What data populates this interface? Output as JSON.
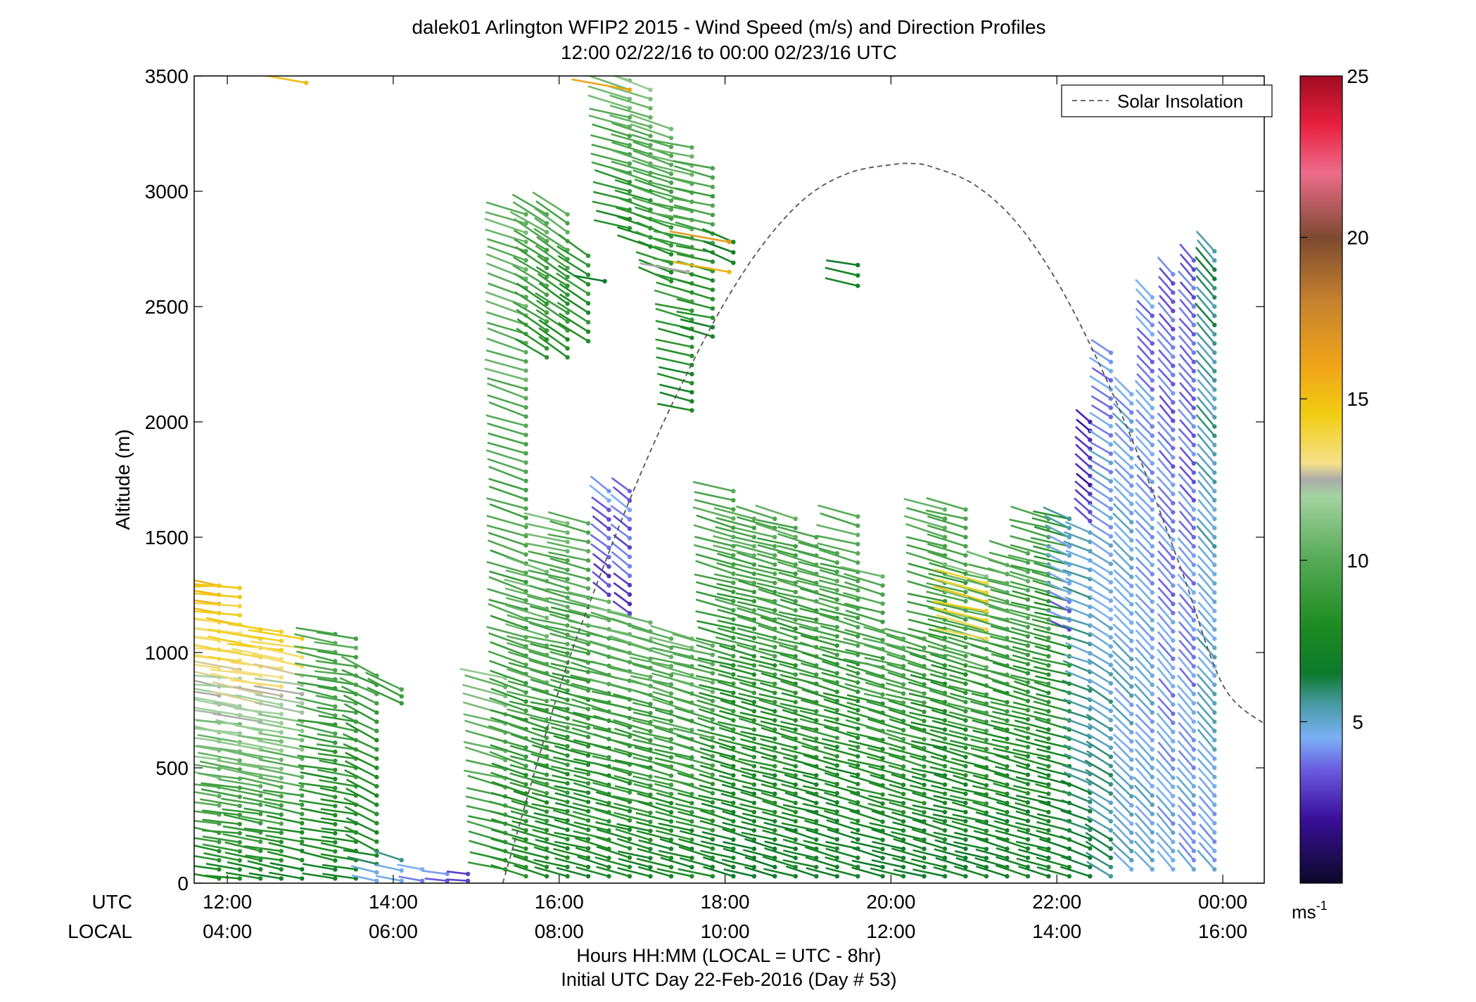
{
  "chart_data": {
    "type": "scatter",
    "title": "dalek01 Arlington WFIP2 2015 - Wind Speed (m/s) and Direction Profiles",
    "subtitle": "12:00 02/22/16 to 00:00 02/23/16  UTC",
    "ylabel": "Altitude (m)",
    "ylim": [
      0,
      3500
    ],
    "yticks": [
      "0",
      "500",
      "1000",
      "1500",
      "2000",
      "2500",
      "3000",
      "3500"
    ],
    "xlim_hours_utc": [
      11.6,
      24.5
    ],
    "xrow_utc_label": "UTC",
    "xrow_local_label": "LOCAL",
    "xticks_utc": [
      "12:00",
      "14:00",
      "16:00",
      "18:00",
      "20:00",
      "22:00",
      "00:00"
    ],
    "xticks_local": [
      "04:00",
      "06:00",
      "08:00",
      "10:00",
      "12:00",
      "14:00",
      "16:00"
    ],
    "xlabel": "Hours HH:MM  (LOCAL = UTC - 8hr)",
    "xlabel2": "Initial UTC Day 22-Feb-2016 (Day # 53)",
    "legend": {
      "label": "Solar Insolation",
      "placement": "top-right",
      "style": "dashed",
      "color": "#555555"
    },
    "solar_insolation_curve": {
      "x_hours_utc": [
        15.32,
        16.0,
        16.5,
        17.0,
        17.5,
        18.0,
        18.5,
        19.0,
        19.5,
        20.0,
        20.27,
        20.5,
        21.0,
        21.5,
        22.0,
        22.5,
        23.0,
        23.5,
        24.0,
        24.5
      ],
      "y_altitude_m": [
        0,
        840,
        1340,
        1790,
        2180,
        2520,
        2790,
        2980,
        3080,
        3115,
        3120,
        3105,
        3030,
        2870,
        2610,
        2260,
        1840,
        1360,
        860,
        690
      ]
    },
    "colorbar": {
      "min": 0,
      "max": 25,
      "ticks": [
        "5",
        "10",
        "15",
        "20",
        "25"
      ],
      "unit_label": "ms",
      "unit_exponent": "-1",
      "stops": [
        [
          0,
          "#0b0a28"
        ],
        [
          2,
          "#3a0f9a"
        ],
        [
          3.5,
          "#6a5ae0"
        ],
        [
          4.5,
          "#7ab0f5"
        ],
        [
          5.5,
          "#4a9ba8"
        ],
        [
          6.5,
          "#0d7a2c"
        ],
        [
          8,
          "#1e8c22"
        ],
        [
          10,
          "#55aa55"
        ],
        [
          12,
          "#a3d3a0"
        ],
        [
          12.5,
          "#aaaaaa"
        ],
        [
          13,
          "#f5e08a"
        ],
        [
          14.5,
          "#f1cd12"
        ],
        [
          16,
          "#f0a418"
        ],
        [
          18,
          "#c7822d"
        ],
        [
          20,
          "#7d4a30"
        ],
        [
          22,
          "#ee6b8b"
        ],
        [
          23.5,
          "#e8203e"
        ],
        [
          25,
          "#a00c22"
        ]
      ]
    },
    "profiles": [
      {
        "t": 11.9,
        "segments": [
          [
            20,
            1290,
            8.0,
            15.5,
            1.5,
            -0.08
          ],
          [
            1290,
            1290,
            15.0,
            15.0,
            0,
            0
          ]
        ]
      },
      {
        "t": 12.15,
        "segments": [
          [
            20,
            1280,
            7.5,
            14.8,
            1.4,
            -0.1
          ]
        ]
      },
      {
        "t": 12.4,
        "segments": [
          [
            20,
            1100,
            7.8,
            14.5,
            1.4,
            -0.05
          ]
        ]
      },
      {
        "t": 12.65,
        "segments": [
          [
            20,
            1090,
            7.5,
            14.5,
            1.4,
            -0.05
          ]
        ]
      },
      {
        "t": 12.9,
        "segments": [
          [
            20,
            1060,
            7.0,
            14.0,
            1.4,
            -0.05
          ]
        ]
      },
      {
        "t": 13.3,
        "segments": [
          [
            20,
            1080,
            7.5,
            10.0,
            1.3,
            -0.02
          ]
        ]
      },
      {
        "t": 13.55,
        "segments": [
          [
            20,
            1060,
            7.8,
            10.0,
            1.3,
            -0.05
          ]
        ]
      },
      {
        "t": 13.8,
        "segments": [
          [
            10,
            120,
            4.5,
            7.0,
            0.5,
            0.15
          ],
          [
            140,
            900,
            7.5,
            9.5,
            1.1,
            0.35
          ]
        ]
      },
      {
        "t": 14.1,
        "segments": [
          [
            10,
            100,
            4.5,
            6.0,
            0.5,
            0.2
          ],
          [
            780,
            840,
            9.5,
            9.5,
            1.0,
            0.4
          ]
        ]
      },
      {
        "t": 14.35,
        "segments": [
          [
            10,
            60,
            4.2,
            5.0,
            0.6,
            0.1
          ]
        ]
      },
      {
        "t": 14.65,
        "segments": [
          [
            10,
            40,
            4.0,
            4.0,
            0.6,
            0.0
          ]
        ]
      },
      {
        "t": 14.9,
        "segments": [
          [
            10,
            40,
            2.5,
            2.5,
            0.6,
            0.0
          ]
        ]
      },
      {
        "t": 15.35,
        "segments": [
          [
            60,
            890,
            8.5,
            11.0,
            1.0,
            0.1
          ]
        ]
      },
      {
        "t": 15.6,
        "segments": [
          [
            30,
            2900,
            8.5,
            10.5,
            1.2,
            0.15
          ]
        ]
      },
      {
        "t": 15.85,
        "segments": [
          [
            30,
            1350,
            7.5,
            11.0,
            1.3,
            0.1
          ],
          [
            2280,
            2900,
            8.5,
            10.0,
            1.1,
            0.5
          ]
        ]
      },
      {
        "t": 16.1,
        "segments": [
          [
            30,
            1560,
            7.5,
            10.5,
            1.3,
            0.05
          ],
          [
            2280,
            2900,
            8.0,
            10.0,
            1.1,
            0.55
          ]
        ]
      },
      {
        "t": 16.35,
        "segments": [
          [
            30,
            1560,
            7.5,
            10.0,
            1.3,
            0.05
          ],
          [
            2350,
            2720,
            8.0,
            9.0,
            1.1,
            0.55
          ]
        ]
      },
      {
        "t": 16.6,
        "segments": [
          [
            30,
            1220,
            7.5,
            10.0,
            1.4,
            0.05
          ],
          [
            1250,
            1700,
            3.0,
            4.0,
            0.9,
            0.7
          ]
        ]
      },
      {
        "t": 16.85,
        "segments": [
          [
            30,
            1160,
            7.5,
            10.5,
            1.4,
            0.05
          ],
          [
            1170,
            1700,
            3.0,
            4.0,
            0.9,
            0.7
          ],
          [
            2840,
            3480,
            8.0,
            11.0,
            1.2,
            0.1
          ]
        ]
      },
      {
        "t": 17.1,
        "segments": [
          [
            30,
            1130,
            7.5,
            10.5,
            1.4,
            0.05
          ],
          [
            2760,
            3440,
            8.0,
            11.0,
            1.2,
            0.15
          ]
        ]
      },
      {
        "t": 17.35,
        "segments": [
          [
            30,
            1060,
            7.5,
            10.5,
            1.4,
            0.05
          ],
          [
            2610,
            3270,
            8.0,
            10.5,
            1.2,
            0.2
          ]
        ]
      },
      {
        "t": 17.6,
        "segments": [
          [
            30,
            1060,
            7.5,
            10.5,
            1.4,
            0.05
          ],
          [
            2050,
            3190,
            7.5,
            10.5,
            1.2,
            0.05
          ]
        ]
      },
      {
        "t": 17.85,
        "segments": [
          [
            30,
            1030,
            7.5,
            10.5,
            1.4,
            0.05
          ],
          [
            2370,
            3100,
            7.5,
            10.0,
            1.2,
            0.05
          ]
        ]
      },
      {
        "t": 18.1,
        "segments": [
          [
            30,
            1700,
            7.0,
            10.0,
            1.4,
            0.05
          ],
          [
            2690,
            2780,
            7.0,
            7.5,
            1.0,
            0.3
          ]
        ]
      },
      {
        "t": 18.35,
        "segments": [
          [
            30,
            1580,
            7.0,
            10.0,
            1.4,
            0.05
          ]
        ]
      },
      {
        "t": 18.6,
        "segments": [
          [
            30,
            1580,
            7.0,
            10.0,
            1.4,
            0.05
          ]
        ]
      },
      {
        "t": 18.85,
        "segments": [
          [
            30,
            1580,
            7.0,
            10.0,
            1.4,
            0.05
          ]
        ]
      },
      {
        "t": 19.1,
        "segments": [
          [
            30,
            1500,
            7.0,
            10.0,
            1.4,
            0.05
          ]
        ]
      },
      {
        "t": 19.35,
        "segments": [
          [
            30,
            1430,
            7.0,
            10.0,
            1.4,
            0.05
          ]
        ]
      },
      {
        "t": 19.6,
        "segments": [
          [
            30,
            1590,
            7.0,
            10.0,
            1.4,
            0.05
          ],
          [
            2590,
            2680,
            7.0,
            7.0,
            1.0,
            0.05
          ]
        ]
      },
      {
        "t": 19.9,
        "segments": [
          [
            30,
            1330,
            7.0,
            10.0,
            1.4,
            0.05
          ]
        ]
      },
      {
        "t": 20.15,
        "segments": [
          [
            30,
            1060,
            7.0,
            10.0,
            1.4,
            0.05
          ]
        ]
      },
      {
        "t": 20.4,
        "segments": [
          [
            30,
            1060,
            7.0,
            10.0,
            1.4,
            0.05
          ]
        ]
      },
      {
        "t": 20.65,
        "segments": [
          [
            30,
            1620,
            7.0,
            10.0,
            1.4,
            0.05
          ]
        ]
      },
      {
        "t": 20.9,
        "segments": [
          [
            30,
            1620,
            7.0,
            10.0,
            1.4,
            0.05
          ]
        ]
      },
      {
        "t": 21.15,
        "segments": [
          [
            30,
            1330,
            7.0,
            11.0,
            1.4,
            0.05
          ],
          [
            1060,
            1300,
            14.0,
            14.5,
            1.2,
            0.05
          ]
        ]
      },
      {
        "t": 21.4,
        "segments": [
          [
            30,
            1380,
            7.0,
            10.0,
            1.4,
            0.05
          ]
        ]
      },
      {
        "t": 21.65,
        "segments": [
          [
            30,
            1430,
            7.0,
            10.0,
            1.4,
            0.05
          ]
        ]
      },
      {
        "t": 21.9,
        "segments": [
          [
            30,
            1580,
            7.0,
            10.0,
            1.4,
            0.05
          ]
        ]
      },
      {
        "t": 22.15,
        "segments": [
          [
            30,
            1580,
            7.0,
            9.0,
            1.4,
            0.05
          ],
          [
            1100,
            1580,
            3.5,
            5.0,
            1.2,
            0.3
          ]
        ]
      },
      {
        "t": 22.4,
        "segments": [
          [
            30,
            1520,
            6.5,
            5.0,
            1.2,
            0.2
          ],
          [
            1570,
            2000,
            3.0,
            2.0,
            1.0,
            0.8
          ]
        ]
      },
      {
        "t": 22.65,
        "segments": [
          [
            30,
            2300,
            6.0,
            4.0,
            1.1,
            0.5
          ]
        ]
      },
      {
        "t": 22.9,
        "segments": [
          [
            60,
            2120,
            5.0,
            4.5,
            1.0,
            0.9
          ]
        ]
      },
      {
        "t": 23.15,
        "segments": [
          [
            60,
            2540,
            5.0,
            4.0,
            1.0,
            1.0
          ]
        ]
      },
      {
        "t": 23.4,
        "segments": [
          [
            60,
            2640,
            4.5,
            3.5,
            1.0,
            1.1
          ]
        ]
      },
      {
        "t": 23.65,
        "segments": [
          [
            60,
            2700,
            4.5,
            3.5,
            1.0,
            1.1
          ]
        ]
      },
      {
        "t": 23.9,
        "segments": [
          [
            60,
            2740,
            4.5,
            6.0,
            1.0,
            1.1
          ]
        ]
      }
    ],
    "isolated_barbs": [
      {
        "t": 12.95,
        "alt": 3470,
        "speed": 15.0
      },
      {
        "t": 16.85,
        "alt": 3440,
        "speed": 16.0
      },
      {
        "t": 16.55,
        "alt": 2610,
        "speed": 6.5
      },
      {
        "t": 17.55,
        "alt": 2650,
        "speed": 12.5
      },
      {
        "t": 18.05,
        "alt": 2780,
        "speed": 16.5
      },
      {
        "t": 18.05,
        "alt": 2650,
        "speed": 15.5
      }
    ]
  }
}
